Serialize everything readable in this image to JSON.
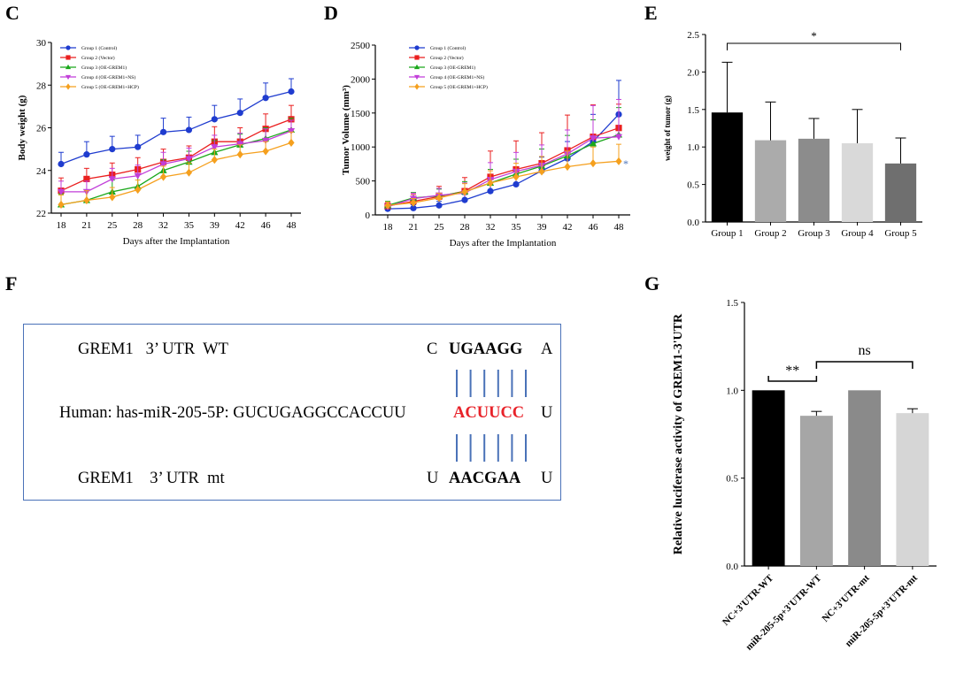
{
  "panels": {
    "C": {
      "letter": "C"
    },
    "D": {
      "letter": "D"
    },
    "E": {
      "letter": "E"
    },
    "F": {
      "letter": "F"
    },
    "G": {
      "letter": "G"
    }
  },
  "colors": {
    "group1": "#1f3ccf",
    "group2": "#ea1f1f",
    "group3": "#1ba81b",
    "group4": "#c23fd9",
    "group5": "#f5a01e",
    "box_border": "#4a72b8",
    "highlight": "#e8232a"
  },
  "chart_data": [
    {
      "id": "C",
      "type": "line",
      "title": "",
      "xlabel": "Days after the Implantation",
      "ylabel": "Body weight (g)",
      "categories": [
        "18",
        "21",
        "25",
        "28",
        "32",
        "35",
        "39",
        "42",
        "46",
        "48"
      ],
      "ylim": [
        22,
        30
      ],
      "yticks": [
        "22",
        "24",
        "26",
        "28",
        "30"
      ],
      "series": [
        {
          "name": "Group 1 (Control)",
          "marker": "circle",
          "color": "#1f3ccf",
          "values": [
            24.3,
            24.75,
            25.0,
            25.1,
            25.8,
            25.9,
            26.4,
            26.7,
            27.4,
            27.7
          ],
          "errors": [
            0.55,
            0.6,
            0.6,
            0.55,
            0.65,
            0.6,
            0.65,
            0.65,
            0.7,
            0.6
          ]
        },
        {
          "name": "Group 2 (Vector)",
          "marker": "square",
          "color": "#ea1f1f",
          "values": [
            23.05,
            23.6,
            23.8,
            24.05,
            24.4,
            24.6,
            25.35,
            25.35,
            25.95,
            26.4
          ],
          "errors": [
            0.6,
            0.5,
            0.55,
            0.55,
            0.6,
            0.55,
            0.7,
            0.65,
            0.7,
            0.65
          ]
        },
        {
          "name": "Group 3 (OE-GREM1)",
          "marker": "triangle",
          "color": "#1ba81b",
          "values": [
            22.4,
            22.6,
            23.0,
            23.25,
            24.0,
            24.4,
            24.85,
            25.2,
            25.5,
            25.9
          ],
          "errors": [
            0.5,
            0.5,
            0.55,
            0.55,
            0.5,
            0.5,
            0.55,
            0.5,
            0.5,
            0.55
          ]
        },
        {
          "name": "Group 4 (OE-GREM1+NS)",
          "marker": "triangle-down",
          "color": "#c23fd9",
          "values": [
            23.0,
            23.0,
            23.6,
            23.75,
            24.3,
            24.55,
            25.1,
            25.25,
            25.4,
            25.85
          ],
          "errors": [
            0.5,
            0.5,
            0.5,
            0.5,
            0.55,
            0.5,
            0.55,
            0.5,
            0.55,
            0.5
          ]
        },
        {
          "name": "Group 5 (OE-GREM1+HCP)",
          "marker": "diamond",
          "color": "#f5a01e",
          "values": [
            22.4,
            22.6,
            22.75,
            23.1,
            23.7,
            23.9,
            24.5,
            24.75,
            24.9,
            25.3
          ],
          "errors": [
            0.45,
            0.45,
            0.45,
            0.45,
            0.5,
            0.45,
            0.5,
            0.45,
            0.45,
            0.5
          ]
        }
      ]
    },
    {
      "id": "D",
      "type": "line",
      "title": "",
      "xlabel": "Days after the Implantation",
      "ylabel": "Tumor Volume (mm³)",
      "categories": [
        "18",
        "21",
        "25",
        "28",
        "32",
        "35",
        "39",
        "42",
        "46",
        "48"
      ],
      "ylim": [
        0,
        2500
      ],
      "yticks": [
        "0",
        "500",
        "1000",
        "1500",
        "2000",
        "2500"
      ],
      "annotation": "*",
      "series": [
        {
          "name": "Group 1 (Control)",
          "marker": "circle",
          "color": "#1f3ccf",
          "values": [
            90,
            100,
            140,
            220,
            350,
            450,
            650,
            830,
            1080,
            1480
          ],
          "errors": [
            40,
            50,
            60,
            80,
            120,
            150,
            200,
            250,
            400,
            500
          ]
        },
        {
          "name": "Group 2 (Vector)",
          "marker": "square",
          "color": "#ea1f1f",
          "values": [
            130,
            200,
            270,
            350,
            560,
            670,
            760,
            950,
            1150,
            1280
          ],
          "errors": [
            60,
            100,
            150,
            200,
            380,
            420,
            450,
            520,
            470,
            350
          ]
        },
        {
          "name": "Group 3 (OE-GREM1)",
          "marker": "triangle",
          "color": "#1ba81b",
          "values": [
            140,
            250,
            280,
            340,
            470,
            600,
            720,
            870,
            1050,
            1180
          ],
          "errors": [
            60,
            80,
            100,
            150,
            200,
            220,
            250,
            300,
            350,
            400
          ]
        },
        {
          "name": "Group 4 (OE-GREM1+NS)",
          "marker": "triangle-down",
          "color": "#c23fd9",
          "values": [
            120,
            240,
            290,
            320,
            520,
            640,
            730,
            900,
            1130,
            1150
          ],
          "errors": [
            60,
            80,
            100,
            150,
            250,
            280,
            300,
            350,
            480,
            550
          ]
        },
        {
          "name": "Group 5 (OE-GREM1+HCP)",
          "marker": "diamond",
          "color": "#f5a01e",
          "values": [
            140,
            180,
            250,
            340,
            470,
            560,
            640,
            710,
            760,
            790
          ],
          "errors": [
            50,
            60,
            70,
            120,
            180,
            200,
            220,
            230,
            240,
            250
          ]
        }
      ]
    },
    {
      "id": "E",
      "type": "bar",
      "title": "",
      "xlabel": "",
      "ylabel": "weight of tumor (g)",
      "categories": [
        "Group 1",
        "Group 2",
        "Group 3",
        "Group 4",
        "Group 5"
      ],
      "values": [
        1.46,
        1.09,
        1.11,
        1.05,
        0.78
      ],
      "errors": [
        0.67,
        0.51,
        0.27,
        0.45,
        0.34
      ],
      "bar_colors": [
        "#000000",
        "#ababab",
        "#8c8c8c",
        "#d9d9d9",
        "#6f6f6f"
      ],
      "ylim": [
        0,
        2.5
      ],
      "yticks": [
        "0.0",
        "0.5",
        "1.0",
        "1.5",
        "2.0",
        "2.5"
      ],
      "significance": [
        {
          "from": 0,
          "to": 4,
          "label": "*"
        }
      ]
    },
    {
      "id": "G",
      "type": "bar",
      "title": "",
      "xlabel": "",
      "ylabel": "Relative luciferase activity of GREM1-3'UTR",
      "categories": [
        "NC+3'UTR-WT",
        "miR-205-5p+3'UTR-WT",
        "NC+3'UTR-mt",
        "miR-205-5p+3'UTR-mt"
      ],
      "values": [
        1.0,
        0.855,
        1.0,
        0.87
      ],
      "errors": [
        0,
        0.025,
        0,
        0.025
      ],
      "bar_colors": [
        "#000000",
        "#a6a6a6",
        "#8a8a8a",
        "#d6d6d6"
      ],
      "ylim": [
        0,
        1.5
      ],
      "yticks": [
        "0.0",
        "0.5",
        "1.0",
        "1.5"
      ],
      "significance": [
        {
          "from": 0,
          "to": 1,
          "label": "**"
        },
        {
          "from": 1,
          "to": 3,
          "label": "ns"
        }
      ]
    }
  ],
  "sequence": {
    "wt_label": "GREM1   3’ UTR  WT",
    "wt_left": "C",
    "wt_seed": "UGAAGG",
    "wt_right": "A",
    "mir_label": "Human: has-miR-205-5P: GUCUGAGGCCACCUU",
    "mir_seed": "ACUUCC",
    "mir_right": "U",
    "mt_label": "GREM1    3’ UTR  mt",
    "mt_left": "U",
    "mt_seed": "AACGAA",
    "mt_right": "U"
  }
}
